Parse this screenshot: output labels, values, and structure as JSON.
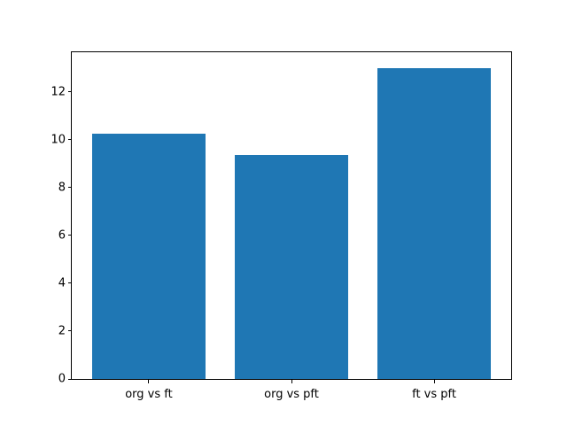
{
  "chart_data": {
    "type": "bar",
    "categories": [
      "org vs ft",
      "org vs pft",
      "ft vs pft"
    ],
    "values": [
      10.25,
      9.35,
      13.0
    ],
    "title": "",
    "xlabel": "",
    "ylabel": "",
    "ylim": [
      0,
      13.65
    ],
    "yticks": [
      0,
      2,
      4,
      6,
      8,
      10,
      12
    ],
    "bar_color": "#1f77b4",
    "spine_color": "#000000",
    "tick_color": "#000000",
    "background_color": "#ffffff",
    "grid": false,
    "legend": null
  }
}
